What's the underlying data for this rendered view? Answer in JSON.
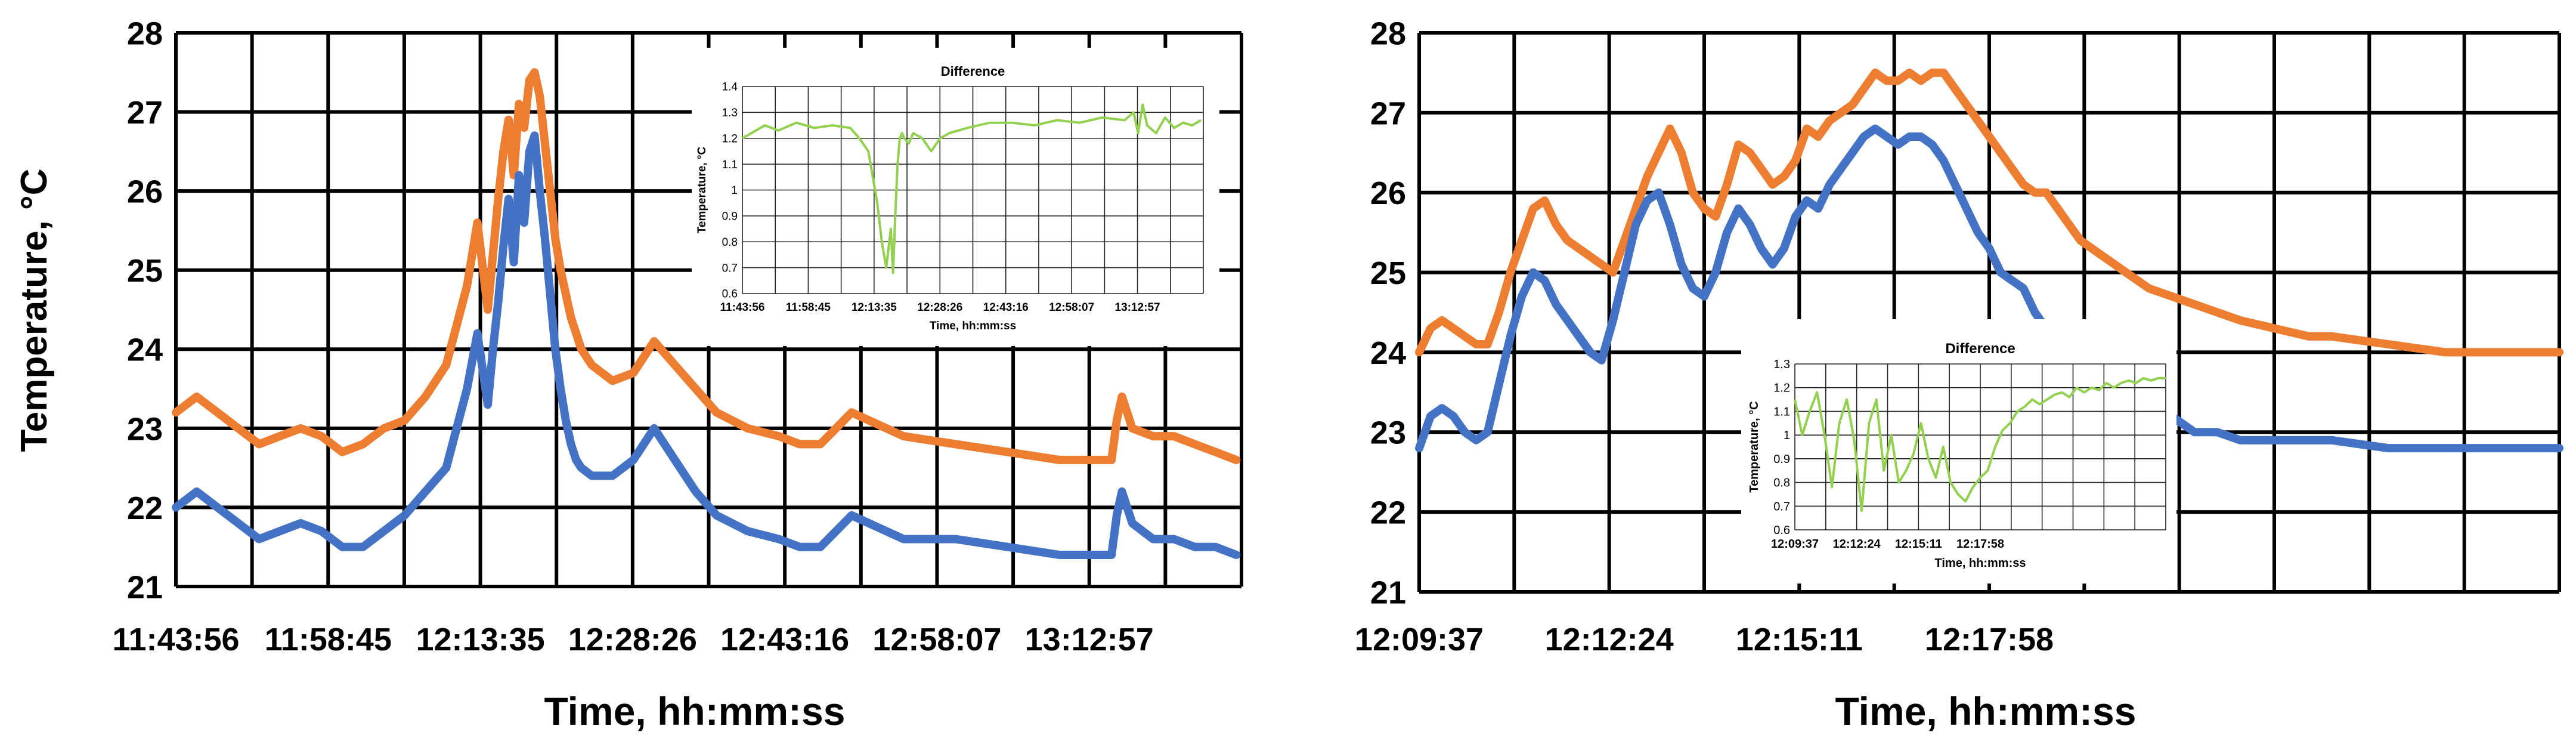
{
  "chart_data": [
    {
      "type": "line",
      "panel": "left",
      "title": "",
      "xlabel": "Time, hh:mm:ss",
      "ylabel": "Temperature, °C",
      "ylim": [
        21,
        28
      ],
      "yticks": [
        21,
        22,
        23,
        24,
        25,
        26,
        27,
        28
      ],
      "xlim": [
        0,
        1.025
      ],
      "xtick_labels": [
        "11:43:56",
        "11:58:45",
        "12:13:35",
        "12:28:26",
        "12:43:16",
        "12:58:07",
        "13:12:57"
      ],
      "grid": true,
      "legend": "none",
      "colors": {
        "orange": "#ED7D31",
        "blue": "#4472C4",
        "difference": "#92D050"
      },
      "series": [
        {
          "color": "#ED7D31",
          "x": [
            0,
            0.02,
            0.04,
            0.06,
            0.08,
            0.1,
            0.12,
            0.14,
            0.16,
            0.18,
            0.2,
            0.22,
            0.24,
            0.26,
            0.28,
            0.29,
            0.3,
            0.305,
            0.31,
            0.315,
            0.32,
            0.325,
            0.33,
            0.335,
            0.34,
            0.345,
            0.35,
            0.355,
            0.36,
            0.365,
            0.37,
            0.375,
            0.38,
            0.385,
            0.39,
            0.4,
            0.42,
            0.44,
            0.46,
            0.48,
            0.5,
            0.52,
            0.55,
            0.58,
            0.6,
            0.62,
            0.65,
            0.7,
            0.75,
            0.8,
            0.85,
            0.88,
            0.9,
            0.905,
            0.91,
            0.92,
            0.94,
            0.96,
            0.98,
            1.0,
            1.02
          ],
          "y": [
            23.2,
            23.4,
            23.2,
            23.0,
            22.8,
            22.9,
            23.0,
            22.9,
            22.7,
            22.8,
            23.0,
            23.1,
            23.4,
            23.8,
            24.8,
            25.6,
            24.5,
            25.2,
            25.9,
            26.5,
            26.9,
            26.2,
            27.1,
            26.8,
            27.4,
            27.5,
            27.2,
            26.6,
            26.0,
            25.4,
            25.0,
            24.7,
            24.4,
            24.2,
            24.0,
            23.8,
            23.6,
            23.7,
            24.1,
            23.8,
            23.5,
            23.2,
            23.0,
            22.9,
            22.8,
            22.8,
            23.2,
            22.9,
            22.8,
            22.7,
            22.6,
            22.6,
            22.6,
            23.1,
            23.4,
            23.0,
            22.9,
            22.9,
            22.8,
            22.7,
            22.6
          ]
        },
        {
          "color": "#4472C4",
          "x": [
            0,
            0.02,
            0.04,
            0.06,
            0.08,
            0.1,
            0.12,
            0.14,
            0.16,
            0.18,
            0.2,
            0.22,
            0.24,
            0.26,
            0.28,
            0.29,
            0.3,
            0.305,
            0.31,
            0.315,
            0.32,
            0.325,
            0.33,
            0.335,
            0.34,
            0.345,
            0.35,
            0.355,
            0.36,
            0.365,
            0.37,
            0.375,
            0.38,
            0.385,
            0.39,
            0.4,
            0.42,
            0.44,
            0.46,
            0.48,
            0.5,
            0.52,
            0.55,
            0.58,
            0.6,
            0.62,
            0.65,
            0.7,
            0.75,
            0.8,
            0.85,
            0.88,
            0.9,
            0.905,
            0.91,
            0.92,
            0.94,
            0.96,
            0.98,
            1.0,
            1.02
          ],
          "y": [
            22.0,
            22.2,
            22.0,
            21.8,
            21.6,
            21.7,
            21.8,
            21.7,
            21.5,
            21.5,
            21.7,
            21.9,
            22.2,
            22.5,
            23.5,
            24.2,
            23.3,
            24.0,
            24.6,
            25.3,
            25.9,
            25.1,
            26.2,
            25.6,
            26.5,
            26.7,
            26.0,
            25.4,
            24.7,
            24.0,
            23.5,
            23.1,
            22.8,
            22.6,
            22.5,
            22.4,
            22.4,
            22.6,
            23.0,
            22.6,
            22.2,
            21.9,
            21.7,
            21.6,
            21.5,
            21.5,
            21.9,
            21.6,
            21.6,
            21.5,
            21.4,
            21.4,
            21.4,
            21.9,
            22.2,
            21.8,
            21.6,
            21.6,
            21.5,
            21.5,
            21.4
          ]
        }
      ],
      "inset": {
        "title": "Difference",
        "xlabel": "Time, hh:mm:ss",
        "ylabel": "Temperature, °C",
        "ylim": [
          0.6,
          1.4
        ],
        "yticks": [
          "0.6",
          "0.7",
          "0.8",
          "0.9",
          "1",
          "1.1",
          "1.2",
          "1.3",
          "1.4"
        ],
        "xlim": [
          0,
          1.025
        ],
        "xtick_labels": [
          "11:43:56",
          "11:58:45",
          "12:13:35",
          "12:28:26",
          "12:43:16",
          "12:58:07",
          "13:12:57"
        ],
        "series": [
          {
            "color": "#92D050",
            "x": [
              0,
              0.02,
              0.05,
              0.08,
              0.12,
              0.16,
              0.2,
              0.24,
              0.26,
              0.28,
              0.3,
              0.31,
              0.32,
              0.33,
              0.335,
              0.34,
              0.345,
              0.35,
              0.355,
              0.36,
              0.37,
              0.38,
              0.4,
              0.42,
              0.44,
              0.46,
              0.5,
              0.55,
              0.6,
              0.65,
              0.7,
              0.75,
              0.8,
              0.85,
              0.87,
              0.88,
              0.89,
              0.9,
              0.92,
              0.94,
              0.96,
              0.98,
              1.0,
              1.02
            ],
            "y": [
              1.2,
              1.22,
              1.25,
              1.23,
              1.26,
              1.24,
              1.25,
              1.24,
              1.2,
              1.15,
              0.95,
              0.8,
              0.7,
              0.85,
              0.68,
              0.9,
              1.1,
              1.2,
              1.22,
              1.2,
              1.18,
              1.22,
              1.2,
              1.15,
              1.2,
              1.22,
              1.24,
              1.26,
              1.26,
              1.25,
              1.27,
              1.26,
              1.28,
              1.27,
              1.3,
              1.22,
              1.33,
              1.25,
              1.22,
              1.28,
              1.24,
              1.26,
              1.25,
              1.27
            ]
          }
        ]
      }
    },
    {
      "type": "line",
      "panel": "right",
      "title": "",
      "xlabel": "Time, hh:mm:ss",
      "ylabel": "",
      "ylim": [
        21,
        28
      ],
      "yticks": [
        21,
        22,
        23,
        24,
        25,
        26,
        27,
        28
      ],
      "xlim": [
        0,
        1.0
      ],
      "xtick_labels": [
        "12:09:37",
        "12:12:24",
        "12:15:11",
        "12:17:58"
      ],
      "grid": true,
      "legend": "none",
      "series": [
        {
          "color": "#ED7D31",
          "x": [
            0,
            0.01,
            0.02,
            0.03,
            0.04,
            0.05,
            0.06,
            0.07,
            0.08,
            0.09,
            0.1,
            0.11,
            0.12,
            0.13,
            0.14,
            0.15,
            0.16,
            0.17,
            0.18,
            0.19,
            0.2,
            0.21,
            0.22,
            0.23,
            0.24,
            0.25,
            0.26,
            0.27,
            0.28,
            0.29,
            0.3,
            0.31,
            0.32,
            0.33,
            0.34,
            0.35,
            0.36,
            0.37,
            0.38,
            0.39,
            0.4,
            0.41,
            0.42,
            0.43,
            0.44,
            0.45,
            0.46,
            0.47,
            0.48,
            0.49,
            0.5,
            0.51,
            0.52,
            0.53,
            0.54,
            0.55,
            0.56,
            0.57,
            0.58,
            0.59,
            0.6,
            0.62,
            0.64,
            0.66,
            0.68,
            0.7,
            0.72,
            0.75,
            0.78,
            0.8,
            0.85,
            0.9,
            0.95,
            1.0
          ],
          "y": [
            24.0,
            24.3,
            24.4,
            24.3,
            24.2,
            24.1,
            24.1,
            24.5,
            25.0,
            25.4,
            25.8,
            25.9,
            25.6,
            25.4,
            25.3,
            25.2,
            25.1,
            25.0,
            25.4,
            25.8,
            26.2,
            26.5,
            26.8,
            26.5,
            26.0,
            25.8,
            25.7,
            26.1,
            26.6,
            26.5,
            26.3,
            26.1,
            26.2,
            26.4,
            26.8,
            26.7,
            26.9,
            27.0,
            27.1,
            27.3,
            27.5,
            27.4,
            27.4,
            27.5,
            27.4,
            27.5,
            27.5,
            27.3,
            27.1,
            26.9,
            26.7,
            26.5,
            26.3,
            26.1,
            26.0,
            26.0,
            25.8,
            25.6,
            25.4,
            25.3,
            25.2,
            25.0,
            24.8,
            24.7,
            24.6,
            24.5,
            24.4,
            24.3,
            24.2,
            24.2,
            24.1,
            24.0,
            24.0,
            24.0
          ]
        },
        {
          "color": "#4472C4",
          "x": [
            0,
            0.01,
            0.02,
            0.03,
            0.04,
            0.05,
            0.06,
            0.07,
            0.08,
            0.09,
            0.1,
            0.11,
            0.12,
            0.13,
            0.14,
            0.15,
            0.16,
            0.17,
            0.18,
            0.19,
            0.2,
            0.21,
            0.22,
            0.23,
            0.24,
            0.25,
            0.26,
            0.27,
            0.28,
            0.29,
            0.3,
            0.31,
            0.32,
            0.33,
            0.34,
            0.35,
            0.36,
            0.37,
            0.38,
            0.39,
            0.4,
            0.41,
            0.42,
            0.43,
            0.44,
            0.45,
            0.46,
            0.47,
            0.48,
            0.49,
            0.5,
            0.51,
            0.52,
            0.53,
            0.54,
            0.55,
            0.56,
            0.57,
            0.58,
            0.59,
            0.6,
            0.62,
            0.64,
            0.66,
            0.68,
            0.7,
            0.72,
            0.75,
            0.78,
            0.8,
            0.85,
            0.9,
            0.95,
            1.0
          ],
          "y": [
            22.8,
            23.2,
            23.3,
            23.2,
            23.0,
            22.9,
            23.0,
            23.6,
            24.2,
            24.7,
            25.0,
            24.9,
            24.6,
            24.4,
            24.2,
            24.0,
            23.9,
            24.4,
            25.0,
            25.6,
            25.9,
            26.0,
            25.6,
            25.1,
            24.8,
            24.7,
            25.0,
            25.5,
            25.8,
            25.6,
            25.3,
            25.1,
            25.3,
            25.7,
            25.9,
            25.8,
            26.1,
            26.3,
            26.5,
            26.7,
            26.8,
            26.7,
            26.6,
            26.7,
            26.7,
            26.6,
            26.4,
            26.1,
            25.8,
            25.5,
            25.3,
            25.0,
            24.9,
            24.8,
            24.5,
            24.3,
            24.1,
            24.0,
            23.9,
            23.8,
            23.6,
            23.4,
            23.3,
            23.2,
            23.0,
            23.0,
            22.9,
            22.9,
            22.9,
            22.9,
            22.8,
            22.8,
            22.8,
            22.8
          ]
        }
      ],
      "inset": {
        "title": "Difference",
        "xlabel": "Time, hh:mm:ss",
        "ylabel": "Temperature, °C",
        "ylim": [
          0.6,
          1.3
        ],
        "yticks": [
          "0.6",
          "0.7",
          "0.8",
          "0.9",
          "1",
          "1.1",
          "1.2",
          "1.3"
        ],
        "xlim": [
          0,
          1.0
        ],
        "xtick_labels": [
          "12:09:37",
          "12:12:24",
          "12:15:11",
          "12:17:58"
        ],
        "series": [
          {
            "color": "#92D050",
            "x": [
              0,
              0.02,
              0.04,
              0.06,
              0.08,
              0.1,
              0.12,
              0.14,
              0.16,
              0.18,
              0.2,
              0.22,
              0.24,
              0.26,
              0.28,
              0.3,
              0.32,
              0.34,
              0.36,
              0.38,
              0.4,
              0.42,
              0.44,
              0.46,
              0.48,
              0.5,
              0.52,
              0.54,
              0.56,
              0.58,
              0.6,
              0.62,
              0.64,
              0.66,
              0.68,
              0.7,
              0.72,
              0.74,
              0.76,
              0.78,
              0.8,
              0.82,
              0.84,
              0.86,
              0.88,
              0.9,
              0.92,
              0.94,
              0.96,
              0.98,
              1.0
            ],
            "y": [
              1.15,
              1.0,
              1.1,
              1.18,
              1.0,
              0.78,
              1.05,
              1.15,
              0.98,
              0.68,
              1.05,
              1.15,
              0.85,
              1.0,
              0.8,
              0.85,
              0.92,
              1.05,
              0.9,
              0.82,
              0.95,
              0.8,
              0.75,
              0.72,
              0.78,
              0.82,
              0.85,
              0.95,
              1.02,
              1.05,
              1.1,
              1.12,
              1.15,
              1.13,
              1.15,
              1.17,
              1.18,
              1.16,
              1.2,
              1.18,
              1.2,
              1.19,
              1.22,
              1.2,
              1.22,
              1.23,
              1.22,
              1.24,
              1.23,
              1.24,
              1.24
            ]
          }
        ]
      }
    }
  ]
}
